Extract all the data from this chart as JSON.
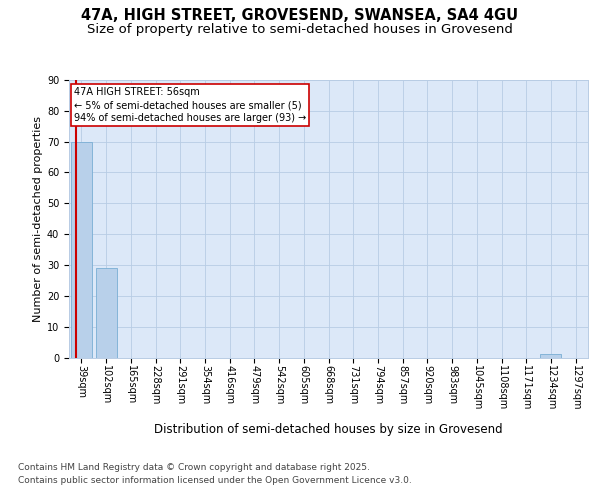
{
  "title": "47A, HIGH STREET, GROVESEND, SWANSEA, SA4 4GU",
  "subtitle": "Size of property relative to semi-detached houses in Grovesend",
  "xlabel": "Distribution of semi-detached houses by size in Grovesend",
  "ylabel": "Number of semi-detached properties",
  "categories": [
    "39sqm",
    "102sqm",
    "165sqm",
    "228sqm",
    "291sqm",
    "354sqm",
    "416sqm",
    "479sqm",
    "542sqm",
    "605sqm",
    "668sqm",
    "731sqm",
    "794sqm",
    "857sqm",
    "920sqm",
    "983sqm",
    "1045sqm",
    "1108sqm",
    "1171sqm",
    "1234sqm",
    "1297sqm"
  ],
  "values": [
    70,
    29,
    0,
    0,
    0,
    0,
    0,
    0,
    0,
    0,
    0,
    0,
    0,
    0,
    0,
    0,
    0,
    0,
    0,
    1,
    0
  ],
  "bar_color": "#b8d0ea",
  "bar_edge_color": "#7aaed4",
  "background_color": "#dce8f8",
  "grid_color": "#b8cce4",
  "annotation_text": "47A HIGH STREET: 56sqm\n← 5% of semi-detached houses are smaller (5)\n94% of semi-detached houses are larger (93) →",
  "annotation_box_color": "#ffffff",
  "annotation_border_color": "#cc0000",
  "footer_line1": "Contains HM Land Registry data © Crown copyright and database right 2025.",
  "footer_line2": "Contains public sector information licensed under the Open Government Licence v3.0.",
  "ylim": [
    0,
    90
  ],
  "yticks": [
    0,
    10,
    20,
    30,
    40,
    50,
    60,
    70,
    80,
    90
  ],
  "title_fontsize": 10.5,
  "subtitle_fontsize": 9.5,
  "axis_label_fontsize": 8,
  "tick_fontsize": 7,
  "footer_fontsize": 6.5,
  "redline_color": "#cc0000"
}
